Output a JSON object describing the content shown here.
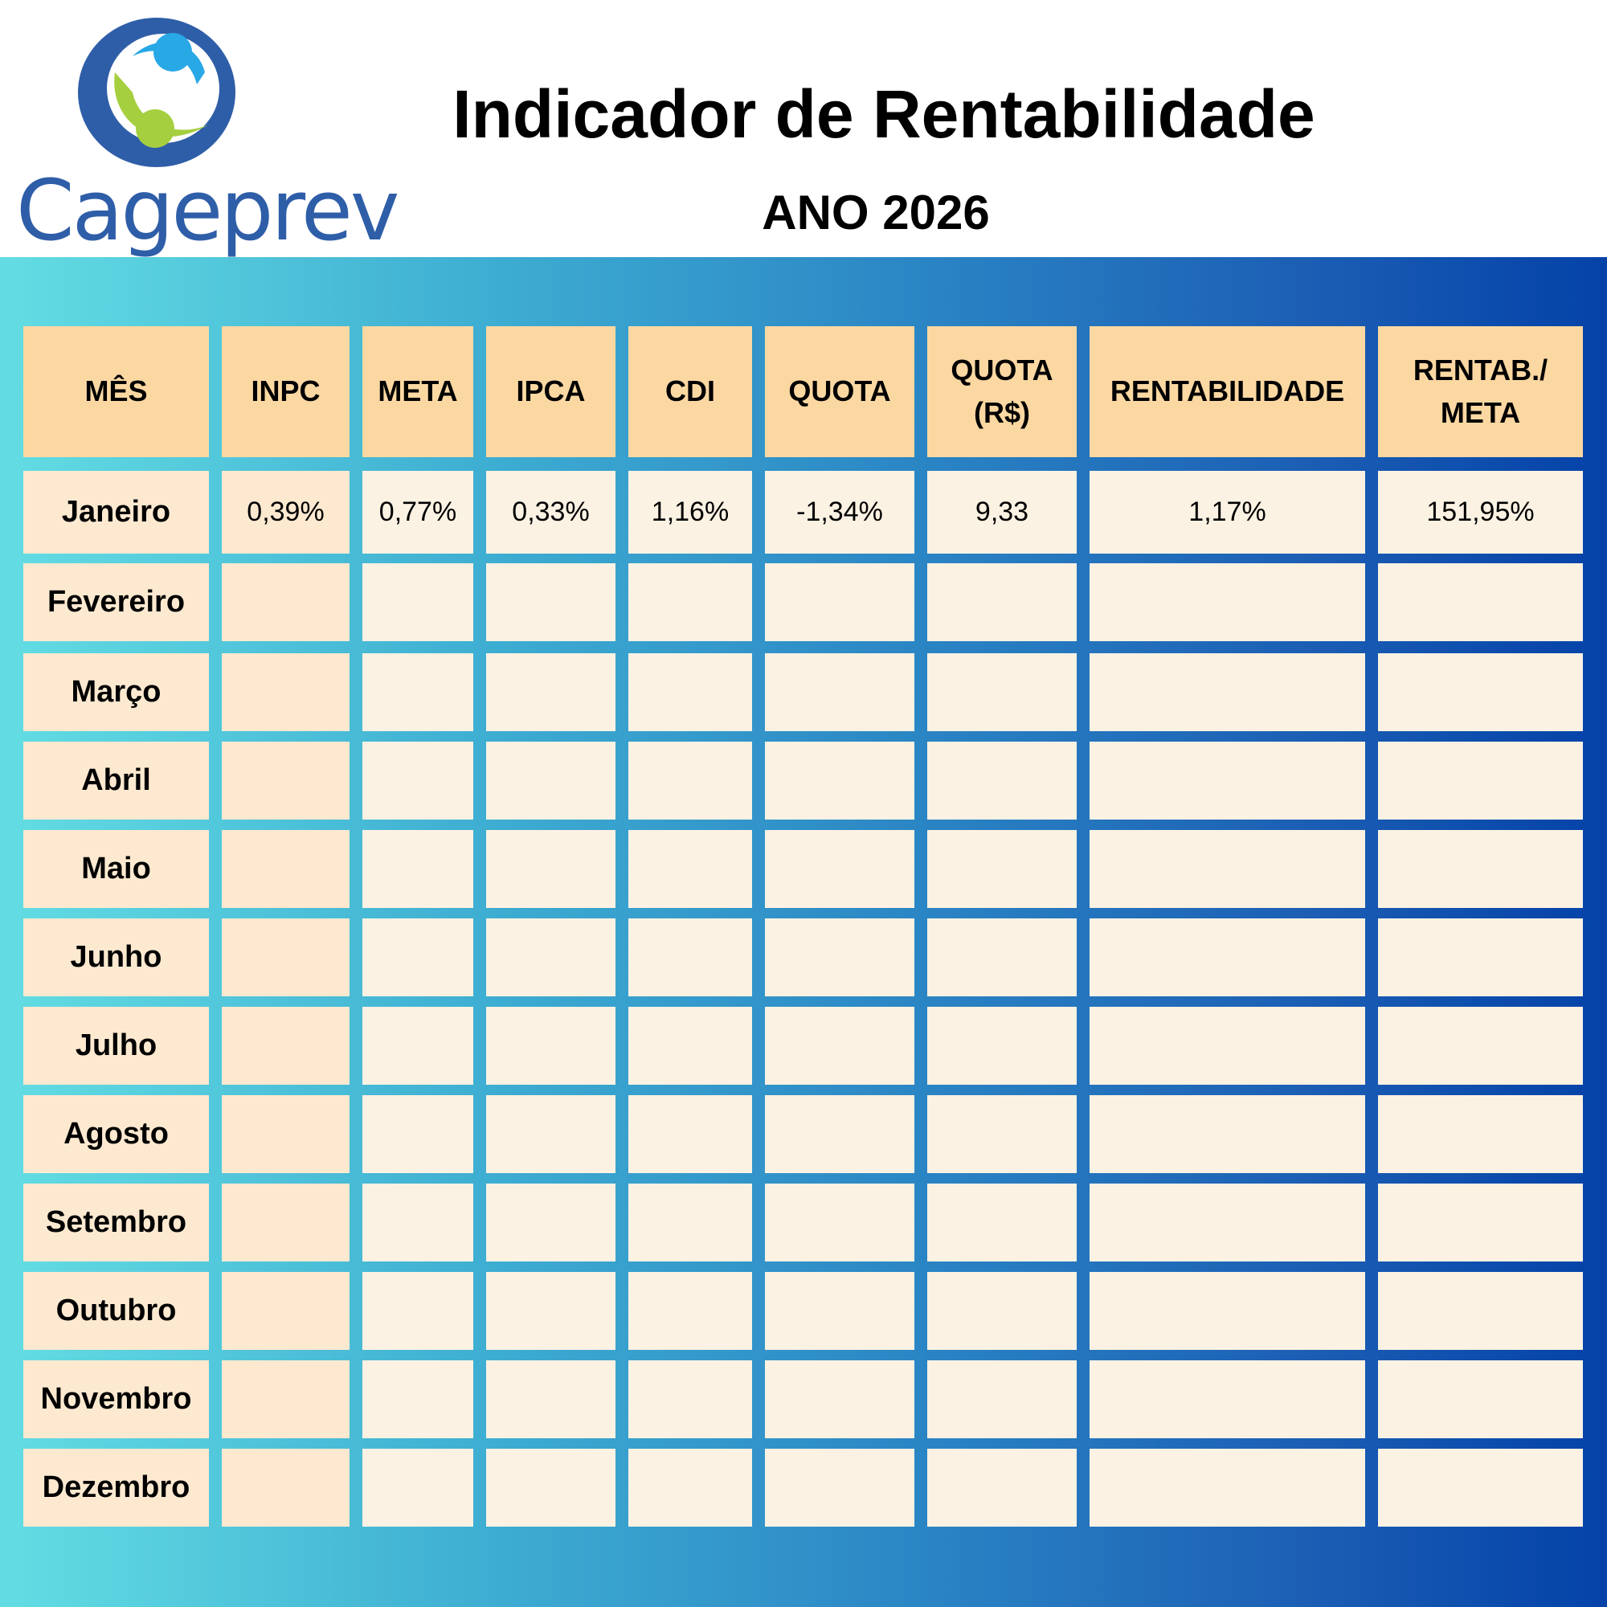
{
  "brand": {
    "name": "Cageprev",
    "logo_icon": "cageprev-logo-icon",
    "colors": {
      "blue": "#2f5ea8",
      "light_blue": "#29a8e6",
      "green": "#a5cf3e"
    }
  },
  "header": {
    "title": "Indicador de Rentabilidade",
    "subtitle": "ANO 2026"
  },
  "table": {
    "columns": [
      "MÊS",
      "INPC",
      "META",
      "IPCA",
      "CDI",
      "QUOTA",
      "QUOTA\n(R$)",
      "RENTABILIDADE",
      "RENTAB./\nMETA"
    ],
    "rows": [
      {
        "month": "Janeiro",
        "values": [
          "0,39%",
          "0,77%",
          "0,33%",
          "1,16%",
          "-1,34%",
          "9,33",
          "1,17%",
          "151,95%"
        ]
      },
      {
        "month": "Fevereiro",
        "values": [
          "",
          "",
          "",
          "",
          "",
          "",
          "",
          ""
        ]
      },
      {
        "month": "Março",
        "values": [
          "",
          "",
          "",
          "",
          "",
          "",
          "",
          ""
        ]
      },
      {
        "month": "Abril",
        "values": [
          "",
          "",
          "",
          "",
          "",
          "",
          "",
          ""
        ]
      },
      {
        "month": "Maio",
        "values": [
          "",
          "",
          "",
          "",
          "",
          "",
          "",
          ""
        ]
      },
      {
        "month": "Junho",
        "values": [
          "",
          "",
          "",
          "",
          "",
          "",
          "",
          ""
        ]
      },
      {
        "month": "Julho",
        "values": [
          "",
          "",
          "",
          "",
          "",
          "",
          "",
          ""
        ]
      },
      {
        "month": "Agosto",
        "values": [
          "",
          "",
          "",
          "",
          "",
          "",
          "",
          ""
        ]
      },
      {
        "month": "Setembro",
        "values": [
          "",
          "",
          "",
          "",
          "",
          "",
          "",
          ""
        ]
      },
      {
        "month": "Outubro",
        "values": [
          "",
          "",
          "",
          "",
          "",
          "",
          "",
          ""
        ]
      },
      {
        "month": "Novembro",
        "values": [
          "",
          "",
          "",
          "",
          "",
          "",
          "",
          ""
        ]
      },
      {
        "month": "Dezembro",
        "values": [
          "",
          "",
          "",
          "",
          "",
          "",
          "",
          ""
        ]
      }
    ]
  }
}
